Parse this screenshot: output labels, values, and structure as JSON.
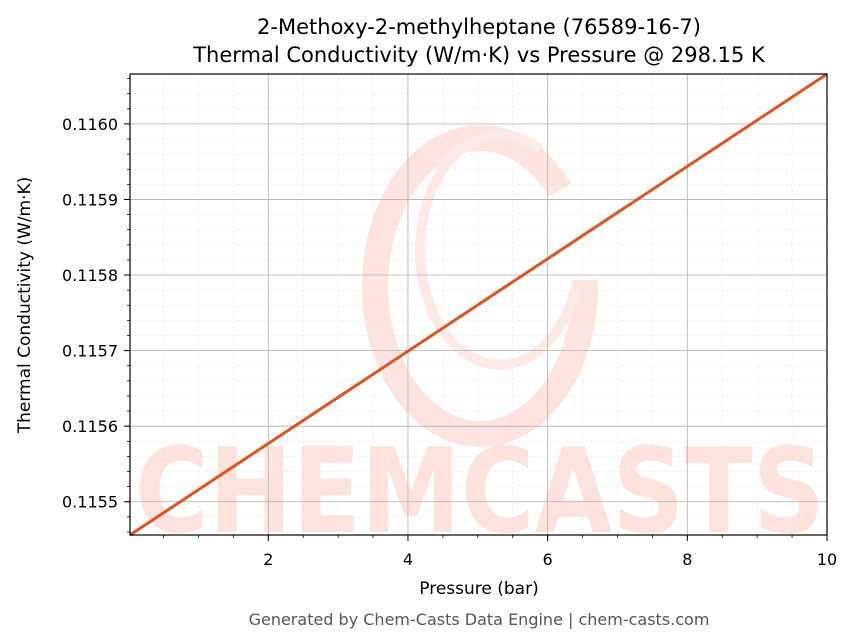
{
  "chart_data": {
    "type": "line",
    "title": "2-Methoxy-2-methylheptane (76589-16-7)",
    "subtitle": "Thermal Conductivity (W/m·K) vs Pressure @ 298.15 K",
    "xlabel": "Pressure (bar)",
    "ylabel": "Thermal Conductivity (W/m·K)",
    "xlim": [
      0.02,
      10
    ],
    "ylim": [
      0.115456,
      0.116066
    ],
    "x_ticks": [
      2,
      4,
      6,
      8,
      10
    ],
    "x_tick_labels": [
      "2",
      "4",
      "6",
      "8",
      "10"
    ],
    "y_ticks": [
      0.1155,
      0.1156,
      0.1157,
      0.1158,
      0.1159,
      0.116
    ],
    "y_tick_labels": [
      "0.1155",
      "0.1156",
      "0.1157",
      "0.1158",
      "0.1159",
      "0.1160"
    ],
    "grid": true,
    "series": [
      {
        "color": "#d95525",
        "x": [
          0.02,
          10
        ],
        "y": [
          0.115456,
          0.116066
        ]
      }
    ],
    "watermark": "CHEMCASTS",
    "footer": "Generated by Chem-Casts Data Engine | chem-casts.com"
  }
}
